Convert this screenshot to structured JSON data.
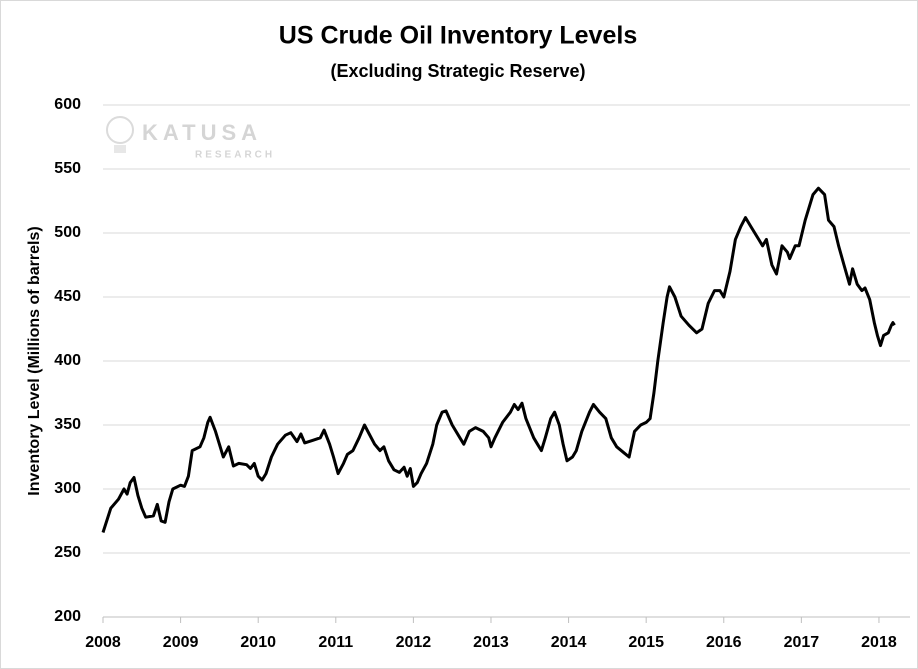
{
  "chart_data": {
    "type": "line",
    "title": "US Crude Oil Inventory Levels",
    "subtitle": "(Excluding Strategic Reserve)",
    "y_label": "Inventory Level (Millions of barrels)",
    "watermark": "KATUSA",
    "watermark_sub": "RESEARCH",
    "color": "#000000",
    "grid": true,
    "xlim": [
      2008,
      2018.4
    ],
    "xticks": [
      2008,
      2009,
      2010,
      2011,
      2012,
      2013,
      2014,
      2015,
      2016,
      2017,
      2018
    ],
    "ylim": [
      200,
      600
    ],
    "yticks": [
      200,
      250,
      300,
      350,
      400,
      450,
      500,
      550,
      600
    ],
    "x": [
      2008.0,
      2008.1,
      2008.2,
      2008.27,
      2008.31,
      2008.35,
      2008.4,
      2008.45,
      2008.5,
      2008.55,
      2008.65,
      2008.7,
      2008.75,
      2008.8,
      2008.85,
      2008.9,
      2009.0,
      2009.05,
      2009.1,
      2009.15,
      2009.25,
      2009.3,
      2009.35,
      2009.38,
      2009.45,
      2009.5,
      2009.55,
      2009.62,
      2009.68,
      2009.75,
      2009.85,
      2009.9,
      2009.95,
      2010.0,
      2010.05,
      2010.1,
      2010.17,
      2010.25,
      2010.35,
      2010.42,
      2010.5,
      2010.55,
      2010.6,
      2010.7,
      2010.8,
      2010.85,
      2010.92,
      2010.97,
      2011.03,
      2011.1,
      2011.15,
      2011.22,
      2011.3,
      2011.37,
      2011.43,
      2011.5,
      2011.57,
      2011.62,
      2011.68,
      2011.75,
      2011.82,
      2011.88,
      2011.92,
      2011.96,
      2012.0,
      2012.05,
      2012.1,
      2012.17,
      2012.25,
      2012.3,
      2012.37,
      2012.42,
      2012.5,
      2012.6,
      2012.65,
      2012.72,
      2012.8,
      2012.9,
      2012.97,
      2013.0,
      2013.05,
      2013.15,
      2013.25,
      2013.3,
      2013.35,
      2013.4,
      2013.45,
      2013.55,
      2013.6,
      2013.65,
      2013.7,
      2013.77,
      2013.82,
      2013.88,
      2013.93,
      2013.98,
      2014.05,
      2014.1,
      2014.17,
      2014.27,
      2014.32,
      2014.4,
      2014.48,
      2014.55,
      2014.62,
      2014.72,
      2014.78,
      2014.85,
      2014.93,
      2015.0,
      2015.05,
      2015.1,
      2015.15,
      2015.22,
      2015.27,
      2015.3,
      2015.37,
      2015.45,
      2015.55,
      2015.65,
      2015.72,
      2015.8,
      2015.88,
      2015.95,
      2016.0,
      2016.08,
      2016.15,
      2016.22,
      2016.28,
      2016.35,
      2016.45,
      2016.5,
      2016.55,
      2016.62,
      2016.68,
      2016.75,
      2016.82,
      2016.85,
      2016.92,
      2016.97,
      2017.05,
      2017.15,
      2017.22,
      2017.3,
      2017.35,
      2017.42,
      2017.48,
      2017.55,
      2017.62,
      2017.66,
      2017.72,
      2017.78,
      2017.82,
      2017.88,
      2017.94,
      2017.98,
      2018.02,
      2018.06,
      2018.12,
      2018.16,
      2018.18,
      2018.2
    ],
    "values": [
      266,
      285,
      292,
      300,
      296,
      305,
      309,
      295,
      285,
      278,
      279,
      288,
      275,
      274,
      290,
      300,
      303,
      302,
      310,
      330,
      333,
      340,
      352,
      356,
      345,
      335,
      325,
      333,
      318,
      320,
      319,
      316,
      320,
      310,
      307,
      312,
      325,
      335,
      342,
      344,
      337,
      343,
      336,
      338,
      340,
      346,
      335,
      325,
      312,
      320,
      327,
      330,
      340,
      350,
      343,
      335,
      330,
      333,
      322,
      315,
      313,
      317,
      310,
      316,
      302,
      305,
      312,
      320,
      335,
      350,
      360,
      361,
      350,
      340,
      335,
      345,
      348,
      345,
      340,
      333,
      340,
      352,
      360,
      366,
      362,
      367,
      355,
      340,
      335,
      330,
      340,
      355,
      360,
      350,
      335,
      322,
      325,
      330,
      345,
      360,
      366,
      360,
      355,
      340,
      333,
      328,
      325,
      345,
      350,
      352,
      355,
      375,
      400,
      430,
      450,
      458,
      450,
      435,
      428,
      422,
      425,
      445,
      455,
      455,
      450,
      470,
      495,
      505,
      512,
      505,
      495,
      490,
      495,
      475,
      468,
      490,
      485,
      480,
      490,
      490,
      510,
      530,
      535,
      530,
      510,
      505,
      490,
      475,
      460,
      472,
      460,
      455,
      457,
      448,
      430,
      420,
      412,
      420,
      422,
      428,
      430,
      428
    ]
  }
}
